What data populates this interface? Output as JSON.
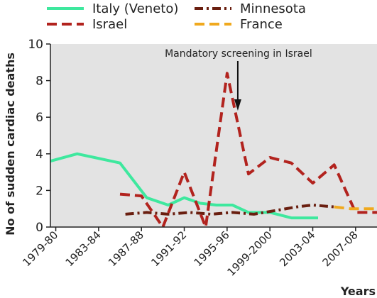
{
  "chart_data": {
    "type": "line",
    "ylabel": "No of sudden cardiac deaths",
    "xlabel": "Years",
    "ylim": [
      0,
      10
    ],
    "yticks": [
      0,
      2,
      4,
      6,
      8,
      10
    ],
    "xlim": [
      1979.0,
      2009.5
    ],
    "xtick_labels": [
      {
        "x": 1979.5,
        "label": "1979-80"
      },
      {
        "x": 1983.5,
        "label": "1983-84"
      },
      {
        "x": 1987.5,
        "label": "1987-88"
      },
      {
        "x": 1991.5,
        "label": "1991-92"
      },
      {
        "x": 1995.5,
        "label": "1995-96"
      },
      {
        "x": 1999.5,
        "label": "1999-2000"
      },
      {
        "x": 2003.5,
        "label": "2003-04"
      },
      {
        "x": 2007.5,
        "label": "2007-08"
      }
    ],
    "grid": "background shaded, no gridlines",
    "legend_placement": "top",
    "annotation": {
      "text": "Mandatory screening in Israel",
      "x": 1996.5
    },
    "series": [
      {
        "name": "Italy (Veneto)",
        "color": "#3ee89e",
        "style": "solid",
        "points": [
          [
            1979.0,
            3.6
          ],
          [
            1981.5,
            4.0
          ],
          [
            1985.5,
            3.5
          ],
          [
            1988.0,
            1.6
          ],
          [
            1990.0,
            1.2
          ],
          [
            1991.5,
            1.6
          ],
          [
            1993.0,
            1.3
          ],
          [
            1994.5,
            1.2
          ],
          [
            1996.0,
            1.2
          ],
          [
            1997.5,
            0.8
          ],
          [
            1999.5,
            0.8
          ],
          [
            2001.5,
            0.5
          ],
          [
            2004.0,
            0.5
          ]
        ]
      },
      {
        "name": "Minnesota",
        "color": "#6a1f10",
        "style": "dash-dot",
        "points": [
          [
            1986.0,
            0.7
          ],
          [
            1988.0,
            0.8
          ],
          [
            1990.0,
            0.7
          ],
          [
            1992.0,
            0.8
          ],
          [
            1994.0,
            0.7
          ],
          [
            1996.0,
            0.8
          ],
          [
            1998.0,
            0.7
          ],
          [
            2000.0,
            0.9
          ],
          [
            2002.0,
            1.1
          ],
          [
            2003.5,
            1.2
          ],
          [
            2005.5,
            1.1
          ]
        ]
      },
      {
        "name": "Israel",
        "color": "#b2231e",
        "style": "dashed",
        "points": [
          [
            1985.5,
            1.8
          ],
          [
            1987.5,
            1.7
          ],
          [
            1989.5,
            0.0
          ],
          [
            1991.5,
            3.0
          ],
          [
            1993.5,
            0.0
          ],
          [
            1995.5,
            8.4
          ],
          [
            1997.5,
            2.9
          ],
          [
            1999.5,
            3.8
          ],
          [
            2001.5,
            3.5
          ],
          [
            2003.5,
            2.4
          ],
          [
            2005.5,
            3.4
          ],
          [
            2007.5,
            0.8
          ],
          [
            2009.5,
            0.8
          ]
        ]
      },
      {
        "name": "France",
        "color": "#f0a91e",
        "style": "dashed",
        "points": [
          [
            2005.5,
            1.1
          ],
          [
            2007.0,
            1.0
          ],
          [
            2009.5,
            1.0
          ]
        ]
      }
    ]
  }
}
